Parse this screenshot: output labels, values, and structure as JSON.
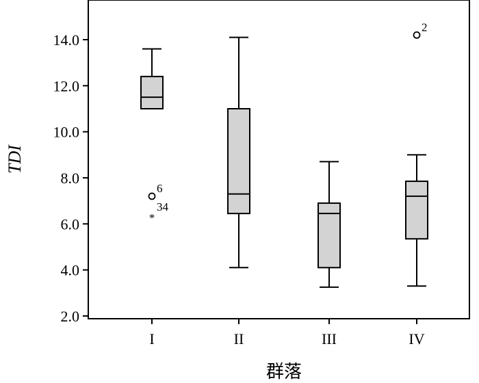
{
  "chart_data": {
    "type": "boxplot",
    "xlabel": "群落",
    "ylabel": "TDI",
    "ylim": [
      2.0,
      15.0
    ],
    "yticks": [
      "2.0",
      "4.0",
      "6.0",
      "8.0",
      "10.0",
      "12.0",
      "14.0"
    ],
    "ytick_values": [
      2,
      4,
      6,
      8,
      10,
      12,
      14
    ],
    "categories": [
      "I",
      "II",
      "III",
      "IV"
    ],
    "boxes": [
      {
        "category": "I",
        "min": 11.0,
        "q1": 11.0,
        "median": 11.5,
        "q3": 12.4,
        "max": 13.6
      },
      {
        "category": "II",
        "min": 4.1,
        "q1": 6.45,
        "median": 7.3,
        "q3": 11.0,
        "max": 14.1
      },
      {
        "category": "III",
        "min": 3.25,
        "q1": 4.1,
        "median": 6.45,
        "q3": 6.9,
        "max": 8.7
      },
      {
        "category": "IV",
        "min": 3.3,
        "q1": 5.35,
        "median": 7.2,
        "q3": 7.85,
        "max": 9.0
      }
    ],
    "outliers": [
      {
        "category": "I",
        "value": 7.2,
        "marker": "circle",
        "label": "6"
      },
      {
        "category": "I",
        "value": 6.4,
        "marker": "star",
        "label": "34"
      },
      {
        "category": "IV",
        "value": 14.2,
        "marker": "circle",
        "label": "2"
      }
    ],
    "box_color": "#d3d3d3",
    "line_color": "#000000",
    "grid": false
  }
}
